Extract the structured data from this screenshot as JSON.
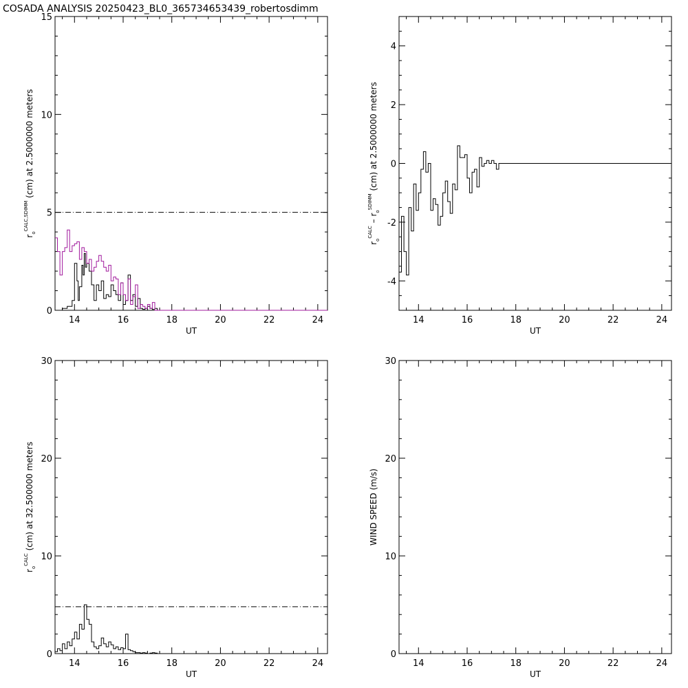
{
  "title": "COSADA ANALYSIS 20250423_BL0_365734653439_robertosdimm",
  "colors": {
    "axis": "#000000",
    "series_black": "#000000",
    "series_magenta": "#a0189c"
  },
  "chart_data": [
    {
      "id": "top-left",
      "type": "line",
      "step": true,
      "xlabel": "UT",
      "ylabel": {
        "sym": "r",
        "sub": "o",
        "sup": "CALC,SDIMM",
        "rest": "(cm)  at  2.5000000 meters"
      },
      "xlim": [
        13.2,
        24.4
      ],
      "ylim": [
        0,
        15
      ],
      "xticks": [
        14,
        16,
        18,
        20,
        22,
        24
      ],
      "yticks": [
        0,
        5,
        10,
        15
      ],
      "hlines": [
        {
          "y": 5,
          "style": "dashed"
        }
      ],
      "series": [
        {
          "color": "black",
          "x": [
            13.2,
            13.5,
            13.7,
            13.9,
            14.0,
            14.1,
            14.15,
            14.2,
            14.3,
            14.35,
            14.4,
            14.45,
            14.5,
            14.6,
            14.7,
            14.8,
            14.9,
            15.0,
            15.1,
            15.2,
            15.3,
            15.4,
            15.5,
            15.6,
            15.7,
            15.8,
            15.9,
            16.0,
            16.1,
            16.2,
            16.3,
            16.4,
            16.5,
            16.6,
            16.7,
            16.8,
            16.9,
            17.0,
            17.1,
            17.2,
            17.3,
            17.4
          ],
          "y": [
            0.0,
            0.1,
            0.2,
            0.5,
            2.4,
            1.5,
            0.5,
            1.2,
            2.3,
            1.8,
            2.9,
            2.2,
            2.4,
            2.0,
            1.3,
            0.5,
            1.3,
            1.0,
            1.5,
            0.6,
            0.8,
            0.7,
            1.3,
            1.0,
            0.8,
            0.5,
            1.4,
            0.3,
            0.5,
            1.8,
            0.5,
            0.8,
            0.2,
            0.6,
            0.1,
            0.05,
            0.1,
            0.2,
            0.1,
            0.05,
            0.1,
            0.0
          ]
        },
        {
          "color": "magenta",
          "x": [
            13.2,
            13.3,
            13.4,
            13.5,
            13.6,
            13.7,
            13.8,
            13.9,
            14.0,
            14.1,
            14.2,
            14.3,
            14.4,
            14.5,
            14.6,
            14.7,
            14.8,
            14.9,
            15.0,
            15.1,
            15.2,
            15.3,
            15.4,
            15.5,
            15.6,
            15.7,
            15.8,
            15.9,
            16.0,
            16.1,
            16.2,
            16.3,
            16.4,
            16.5,
            16.6,
            16.7,
            16.8,
            16.9,
            17.0,
            17.1,
            17.2,
            17.3,
            17.4,
            24.4
          ],
          "y": [
            3.7,
            3.0,
            1.8,
            3.0,
            3.2,
            4.1,
            3.0,
            3.3,
            3.4,
            3.5,
            2.6,
            3.2,
            3.0,
            2.4,
            2.6,
            2.0,
            2.2,
            2.5,
            2.8,
            2.5,
            2.2,
            2.0,
            2.3,
            1.5,
            1.7,
            1.6,
            0.8,
            1.4,
            0.8,
            0.5,
            1.6,
            0.3,
            0.7,
            1.3,
            0.1,
            0.3,
            0.2,
            0.1,
            0.3,
            0.1,
            0.4,
            0.0,
            0.0,
            0.0
          ]
        }
      ]
    },
    {
      "id": "top-right",
      "type": "line",
      "step": true,
      "xlabel": "UT",
      "ylabel": {
        "sym": "r",
        "sub": "o",
        "sup": "CALC",
        "mid": " – r",
        "sub2": "o",
        "sup2": "SDIMM",
        "rest": "(cm)  at  2.5000000 meters"
      },
      "xlim": [
        13.2,
        24.4
      ],
      "ylim": [
        -5,
        5
      ],
      "xticks": [
        14,
        16,
        18,
        20,
        22,
        24
      ],
      "yticks": [
        -4,
        -2,
        0,
        2,
        4
      ],
      "series": [
        {
          "color": "black",
          "x": [
            13.2,
            13.3,
            13.4,
            13.5,
            13.6,
            13.7,
            13.8,
            13.9,
            14.0,
            14.1,
            14.2,
            14.3,
            14.4,
            14.5,
            14.6,
            14.7,
            14.8,
            14.9,
            15.0,
            15.1,
            15.2,
            15.3,
            15.4,
            15.5,
            15.6,
            15.7,
            15.8,
            15.9,
            16.0,
            16.1,
            16.2,
            16.3,
            16.4,
            16.5,
            16.6,
            16.7,
            16.8,
            16.9,
            17.0,
            17.1,
            17.2,
            17.3,
            17.4,
            24.4
          ],
          "y": [
            -3.7,
            -1.8,
            -3.0,
            -3.8,
            -1.5,
            -2.3,
            -0.7,
            -1.6,
            -1.0,
            -0.2,
            0.4,
            -0.3,
            0.0,
            -1.6,
            -1.2,
            -1.4,
            -2.1,
            -1.8,
            -1.0,
            -0.6,
            -1.3,
            -1.7,
            -0.7,
            -0.9,
            0.6,
            0.2,
            0.2,
            0.3,
            -0.5,
            -1.0,
            -0.3,
            -0.2,
            -0.8,
            0.2,
            -0.1,
            0.0,
            0.1,
            0.0,
            0.1,
            0.0,
            -0.2,
            0.0,
            0.0,
            0.0
          ]
        }
      ]
    },
    {
      "id": "bottom-left",
      "type": "line",
      "step": true,
      "xlabel": "UT",
      "ylabel": {
        "sym": "r",
        "sub": "o",
        "sup": "CALC",
        "rest": "(cm)  at  32.500000 meters"
      },
      "xlim": [
        13.2,
        24.4
      ],
      "ylim": [
        0,
        30
      ],
      "xticks": [
        14,
        16,
        18,
        20,
        22,
        24
      ],
      "yticks": [
        0,
        10,
        20,
        30
      ],
      "hlines": [
        {
          "y": 4.8,
          "style": "dashed"
        }
      ],
      "series": [
        {
          "color": "black",
          "x": [
            13.2,
            13.3,
            13.4,
            13.5,
            13.6,
            13.7,
            13.8,
            13.9,
            14.0,
            14.1,
            14.2,
            14.3,
            14.4,
            14.5,
            14.6,
            14.7,
            14.8,
            14.9,
            15.0,
            15.1,
            15.2,
            15.3,
            15.4,
            15.5,
            15.6,
            15.7,
            15.8,
            15.9,
            16.0,
            16.1,
            16.2,
            16.3,
            16.4,
            16.5,
            16.6,
            16.7,
            16.8,
            16.9,
            17.0,
            17.1,
            17.2,
            17.3,
            17.4
          ],
          "y": [
            0.2,
            0.5,
            0.3,
            1.0,
            0.5,
            1.2,
            0.8,
            1.5,
            2.2,
            1.5,
            3.0,
            2.5,
            5.0,
            3.5,
            3.0,
            1.2,
            0.7,
            0.5,
            0.8,
            1.6,
            1.0,
            0.7,
            1.2,
            0.9,
            0.5,
            0.7,
            0.4,
            0.6,
            0.5,
            2.0,
            0.4,
            0.3,
            0.2,
            0.1,
            0.1,
            0.05,
            0.1,
            0.05,
            0.0,
            0.05,
            0.1,
            0.05,
            0.0
          ]
        }
      ]
    },
    {
      "id": "bottom-right",
      "type": "line",
      "xlabel": "UT",
      "ylabel": {
        "rest": "WIND SPEED (m/s)"
      },
      "xlim": [
        13.2,
        24.4
      ],
      "ylim": [
        0,
        30
      ],
      "xticks": [
        14,
        16,
        18,
        20,
        22,
        24
      ],
      "yticks": [
        0,
        10,
        20,
        30
      ],
      "series": []
    }
  ]
}
